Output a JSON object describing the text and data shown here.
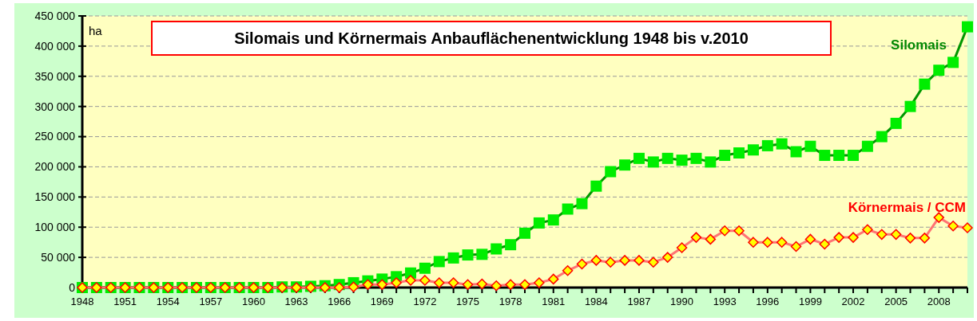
{
  "chart_data": {
    "type": "line",
    "title": "Silomais und Körnermais  Anbauflächenentwicklung 1948 bis v.2010",
    "ylabel": "ha",
    "x": [
      1948,
      1949,
      1950,
      1951,
      1952,
      1953,
      1954,
      1955,
      1956,
      1957,
      1958,
      1959,
      1960,
      1961,
      1962,
      1963,
      1964,
      1965,
      1966,
      1967,
      1968,
      1969,
      1970,
      1971,
      1972,
      1973,
      1974,
      1975,
      1976,
      1977,
      1978,
      1979,
      1980,
      1981,
      1982,
      1983,
      1984,
      1985,
      1986,
      1987,
      1988,
      1989,
      1990,
      1991,
      1992,
      1993,
      1994,
      1995,
      1996,
      1997,
      1998,
      1999,
      2000,
      2001,
      2002,
      2003,
      2004,
      2005,
      2006,
      2007,
      2008,
      2009,
      2010
    ],
    "series": [
      {
        "name": "Silomais",
        "color": "#00ee00",
        "marker": "square",
        "values": [
          0,
          0,
          0,
          0,
          0,
          0,
          0,
          0,
          0,
          0,
          0,
          0,
          0,
          0,
          1000,
          1000,
          2000,
          3000,
          5000,
          8000,
          11000,
          14000,
          18000,
          24000,
          32000,
          43000,
          49000,
          54000,
          55000,
          64000,
          71000,
          90000,
          107000,
          112000,
          130000,
          139000,
          168000,
          192000,
          203000,
          214000,
          208000,
          214000,
          211000,
          214000,
          208000,
          219000,
          223000,
          228000,
          235000,
          238000,
          225000,
          234000,
          219000,
          219000,
          219000,
          234000,
          250000,
          272000,
          300000,
          337000,
          360000,
          373000,
          432000
        ]
      },
      {
        "name": "Körnermais / CCM",
        "color": "#ff0000",
        "marker": "diamond",
        "values": [
          0,
          0,
          0,
          0,
          0,
          0,
          0,
          0,
          0,
          0,
          0,
          0,
          0,
          0,
          0,
          0,
          0,
          0,
          0,
          1000,
          5000,
          5000,
          8000,
          12000,
          12000,
          8000,
          8000,
          5000,
          6000,
          3000,
          5000,
          5000,
          8000,
          14000,
          28000,
          39000,
          45000,
          42000,
          45000,
          45000,
          42000,
          50000,
          66000,
          83000,
          80000,
          94000,
          94000,
          75000,
          75000,
          75000,
          68000,
          80000,
          72000,
          83000,
          83000,
          96000,
          88000,
          88000,
          82000,
          82000,
          116000,
          102000,
          99000
        ]
      }
    ],
    "xlim": [
      1948,
      2010
    ],
    "xticks": [
      1948,
      {
        "value": 1949,
        "label": null
      },
      {
        "value": 1950,
        "label": null
      },
      1951,
      {
        "value": 1952,
        "label": null
      },
      {
        "value": 1953,
        "label": null
      },
      1954,
      {
        "value": 1955,
        "label": null
      },
      {
        "value": 1956,
        "label": null
      },
      1957,
      {
        "value": 1958,
        "label": null
      },
      {
        "value": 1959,
        "label": null
      },
      1960,
      {
        "value": 1961,
        "label": null
      },
      {
        "value": 1962,
        "label": null
      },
      1963,
      {
        "value": 1964,
        "label": null
      },
      {
        "value": 1965,
        "label": null
      },
      1966,
      {
        "value": 1967,
        "label": null
      },
      {
        "value": 1968,
        "label": null
      },
      1969,
      {
        "value": 1970,
        "label": null
      },
      {
        "value": 1971,
        "label": null
      },
      1972,
      {
        "value": 1973,
        "label": null
      },
      {
        "value": 1974,
        "label": null
      },
      1975,
      {
        "value": 1976,
        "label": null
      },
      {
        "value": 1977,
        "label": null
      },
      1978,
      {
        "value": 1979,
        "label": null
      },
      {
        "value": 1980,
        "label": null
      },
      1981,
      {
        "value": 1982,
        "label": null
      },
      {
        "value": 1983,
        "label": null
      },
      1984,
      {
        "value": 1985,
        "label": null
      },
      {
        "value": 1986,
        "label": null
      },
      1987,
      {
        "value": 1988,
        "label": null
      },
      {
        "value": 1989,
        "label": null
      },
      1990,
      {
        "value": 1991,
        "label": null
      },
      {
        "value": 1992,
        "label": null
      },
      1993,
      {
        "value": 1994,
        "label": null
      },
      {
        "value": 1995,
        "label": null
      },
      1996,
      {
        "value": 1997,
        "label": null
      },
      {
        "value": 1998,
        "label": null
      },
      1999,
      {
        "value": 2000,
        "label": null
      },
      {
        "value": 2001,
        "label": null
      },
      2002,
      {
        "value": 2003,
        "label": null
      },
      {
        "value": 2004,
        "label": null
      },
      2005,
      {
        "value": 2006,
        "label": null
      },
      {
        "value": 2007,
        "label": null
      },
      2008,
      {
        "value": 2009,
        "label": null
      },
      {
        "value": 2010,
        "label": null
      }
    ],
    "ylim": [
      0,
      450000
    ],
    "yticks": [
      {
        "value": 0,
        "label": "0"
      },
      {
        "value": 50000,
        "label": "50 000"
      },
      {
        "value": 100000,
        "label": "100 000"
      },
      {
        "value": 150000,
        "label": "150 000"
      },
      {
        "value": 200000,
        "label": "200 000"
      },
      {
        "value": 250000,
        "label": "250 000"
      },
      {
        "value": 300000,
        "label": "300 000"
      },
      {
        "value": 350000,
        "label": "350 000"
      },
      {
        "value": 400000,
        "label": "400 000"
      },
      {
        "value": 450000,
        "label": "450 000"
      }
    ],
    "grid": "y",
    "line_style": "solid"
  }
}
